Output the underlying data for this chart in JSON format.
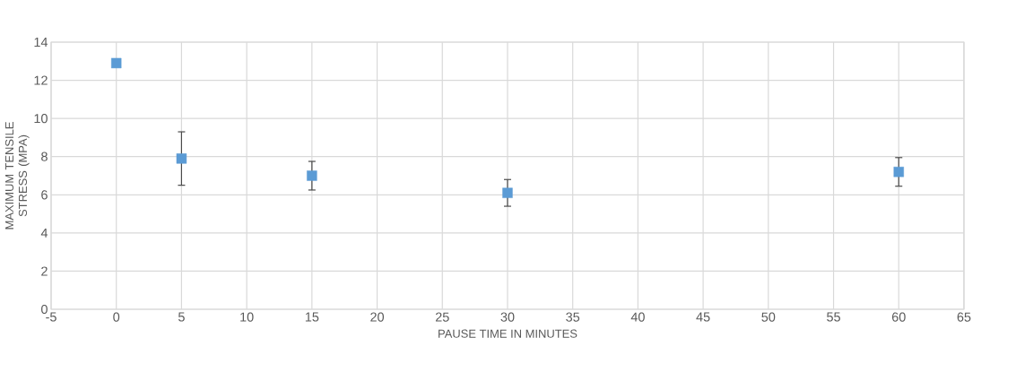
{
  "chart_data": {
    "type": "scatter",
    "xlabel": "PAUSE TIME IN MINUTES",
    "ylabel": "MAXIMUM TENSILE STRESS (MPA)",
    "x": [
      0,
      5,
      15,
      30,
      60
    ],
    "values": [
      12.9,
      7.9,
      7.0,
      6.1,
      7.2
    ],
    "errors": [
      null,
      1.4,
      0.75,
      0.7,
      0.75
    ],
    "color": "#5b9bd5",
    "marker": "square",
    "xlim": [
      -5,
      65
    ],
    "xticks": [
      -5,
      0,
      5,
      10,
      15,
      20,
      25,
      30,
      35,
      40,
      45,
      50,
      55,
      60,
      65
    ],
    "ylim": [
      0,
      14
    ],
    "yticks": [
      0,
      2,
      4,
      6,
      8,
      10,
      12,
      14
    ],
    "grid": true
  }
}
